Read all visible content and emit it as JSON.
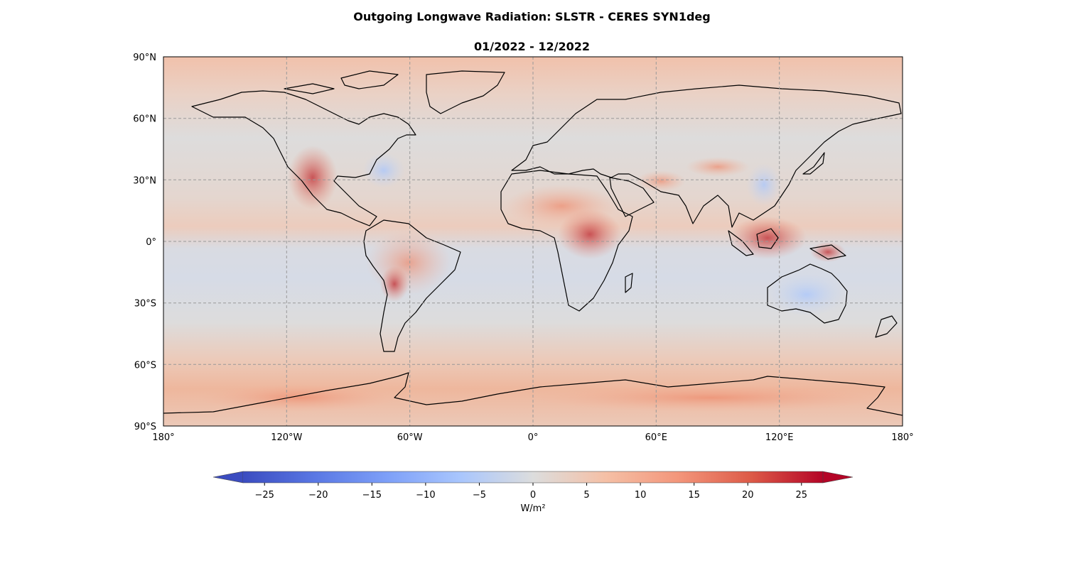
{
  "title": "Outgoing Longwave Radiation: SLSTR - CERES SYN1deg",
  "subtitle": "01/2022 - 12/2022",
  "map": {
    "projection": "PlateCarree",
    "extent": {
      "lon": [
        -180,
        180
      ],
      "lat": [
        -90,
        90
      ]
    },
    "gridlines": {
      "lons": [
        -180,
        -120,
        -60,
        0,
        60,
        120,
        180
      ],
      "lats": [
        90,
        60,
        30,
        0,
        -30,
        -60,
        -90
      ],
      "style": "dashed"
    },
    "lat_ticks": [
      "90°N",
      "60°N",
      "30°N",
      "0°",
      "30°S",
      "60°S",
      "90°S"
    ],
    "lon_ticks": [
      "180°",
      "120°W",
      "60°W",
      "0°",
      "60°E",
      "120°E",
      "180°"
    ],
    "field_description": "difference field, mostly near zero over oceans, positive over tropical land (Amazon, Central Africa, Maritime Continent), Tibet, western Mexico and Antarctic coast"
  },
  "colorbar": {
    "cmap": "coolwarm",
    "vmin": -27,
    "vmax": 27,
    "extend": "both",
    "ticks": [
      "−25",
      "−20",
      "−15",
      "−10",
      "−5",
      "0",
      "5",
      "10",
      "15",
      "20",
      "25"
    ],
    "tick_values": [
      -25,
      -20,
      -15,
      -10,
      -5,
      0,
      5,
      10,
      15,
      20,
      25
    ],
    "label": "W/m²"
  },
  "colors": {
    "cool_end": "#3b4cc0",
    "neutral": "#dddddd",
    "warm_end": "#b40426",
    "grid": "#999999"
  }
}
